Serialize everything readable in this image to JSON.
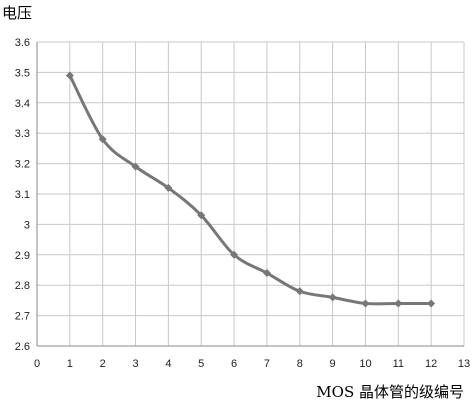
{
  "chart_data": {
    "type": "line",
    "xlabel": "MOS 晶体管的级编号",
    "ylabel": "电压",
    "xlim": [
      0,
      13
    ],
    "ylim": [
      2.6,
      3.6
    ],
    "x_ticks": [
      "0",
      "1",
      "2",
      "3",
      "4",
      "5",
      "6",
      "7",
      "8",
      "9",
      "10",
      "11",
      "12",
      "13"
    ],
    "y_ticks": [
      "2.6",
      "2.7",
      "2.8",
      "2.9",
      "3",
      "3.1",
      "3.2",
      "3.3",
      "3.4",
      "3.5",
      "3.6"
    ],
    "grid": true,
    "series": [
      {
        "x": [
          1,
          2,
          3,
          4,
          5,
          6,
          7,
          8,
          9,
          10,
          11,
          12
        ],
        "values": [
          3.49,
          3.28,
          3.19,
          3.12,
          3.03,
          2.9,
          2.84,
          2.78,
          2.76,
          2.74,
          2.74,
          2.74
        ],
        "color": "#777777",
        "marker": "diamond"
      }
    ]
  }
}
